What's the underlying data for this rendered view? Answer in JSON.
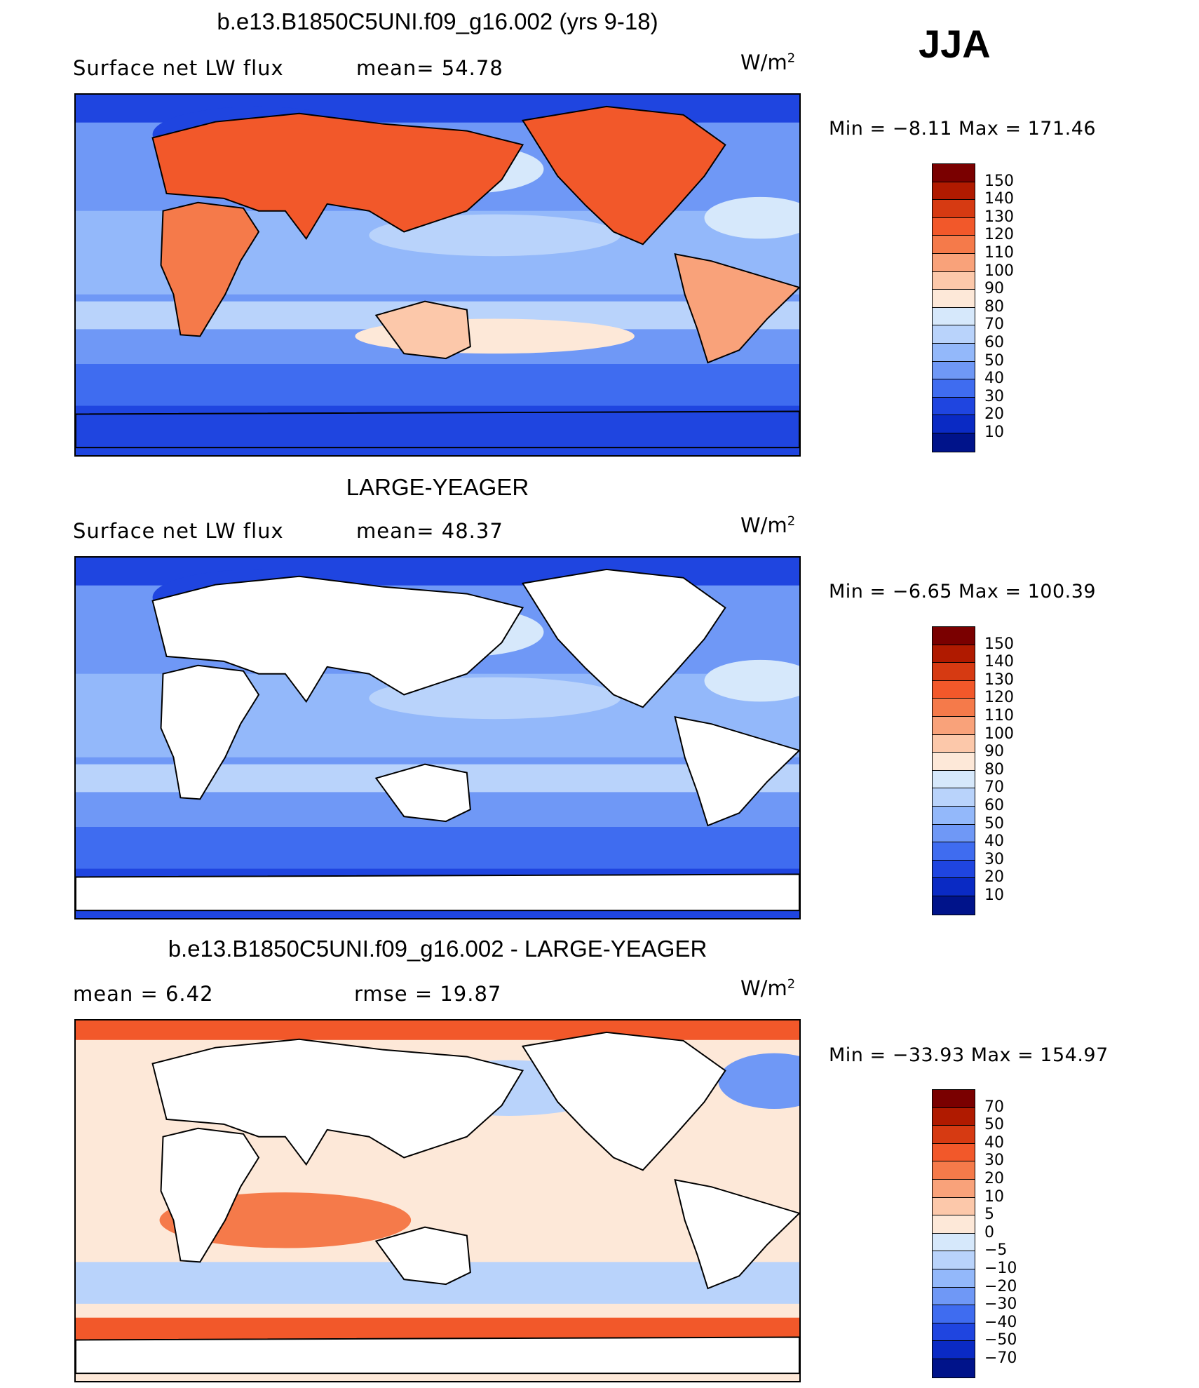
{
  "season": "JJA",
  "panels": [
    {
      "title": "b.e13.B1850C5UNI.f09_g16.002 (yrs 9-18)",
      "variable": "Surface net LW flux",
      "stat1": "mean=   54.78",
      "units_base": "W/m",
      "units_exp": "2",
      "minmax": "Min  =    −8.11  Max  =  171.46",
      "kind": "model"
    },
    {
      "title": "LARGE-YEAGER",
      "variable": "Surface net LW flux",
      "stat1": "mean=   48.37",
      "units_base": "W/m",
      "units_exp": "2",
      "minmax": "Min  =    −6.65  Max  =  100.39",
      "kind": "obs"
    },
    {
      "title": "b.e13.B1850C5UNI.f09_g16.002 - LARGE-YEAGER",
      "variable": "mean  =      6.42",
      "stat1": "rmse  =     19.87",
      "units_base": "W/m",
      "units_exp": "2",
      "minmax": "Min  = −33.93  Max  =  154.97",
      "kind": "diff"
    }
  ],
  "colorbar_abs": {
    "labels": [
      "150",
      "140",
      "130",
      "120",
      "110",
      "100",
      "90",
      "80",
      "70",
      "60",
      "50",
      "40",
      "30",
      "20",
      "10"
    ],
    "colors": [
      "#7a0000",
      "#b01a00",
      "#d63a12",
      "#f2582a",
      "#f57a4a",
      "#f9a27a",
      "#fcc8aa",
      "#fde8d8",
      "#d6e8fb",
      "#b9d3fb",
      "#93b8fa",
      "#6f98f6",
      "#3f6cf0",
      "#1f45e0",
      "#0a2ac4",
      "#00138a"
    ]
  },
  "colorbar_diff": {
    "labels": [
      "70",
      "50",
      "40",
      "30",
      "20",
      "10",
      "5",
      "0",
      "−5",
      "−10",
      "−20",
      "−30",
      "−40",
      "−50",
      "−70"
    ],
    "colors": [
      "#7a0000",
      "#b01a00",
      "#d63a12",
      "#f2582a",
      "#f57a4a",
      "#f9a27a",
      "#fcc8aa",
      "#fde8d8",
      "#d6e8fb",
      "#b9d3fb",
      "#93b8fa",
      "#6f98f6",
      "#3f6cf0",
      "#1f45e0",
      "#0a2ac4",
      "#00138a"
    ]
  }
}
